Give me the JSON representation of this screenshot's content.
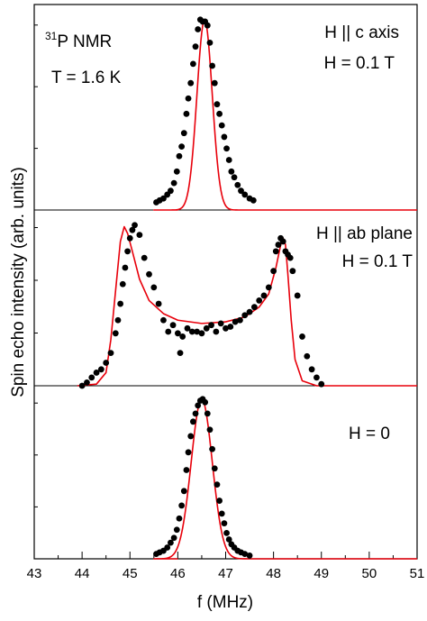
{
  "chart_data": {
    "type": "scatter",
    "xlabel": "f (MHz)",
    "ylabel": "Spin echo intensity (arb. units)",
    "xlim": [
      43,
      51
    ],
    "x_ticks": [
      "43",
      "44",
      "45",
      "46",
      "47",
      "48",
      "49",
      "50",
      "51"
    ],
    "grid": false,
    "colors": {
      "data": "#000000",
      "fit": "#e8000b"
    },
    "panels": [
      {
        "id": "c-axis",
        "ylim": [
          0,
          1.05
        ],
        "annotations": {
          "nucleus_sup": "31",
          "nucleus": "P NMR",
          "temperature": "T = 1.6 K",
          "orientation": "H || c axis",
          "field": "H = 0.1 T"
        },
        "series": [
          {
            "kind": "points",
            "x": [
              45.55,
              45.62,
              45.7,
              45.78,
              45.85,
              45.92,
              45.98,
              46.03,
              46.08,
              46.13,
              46.18,
              46.22,
              46.27,
              46.32,
              46.37,
              46.42,
              46.47,
              46.52,
              46.57,
              46.62,
              46.67,
              46.72,
              46.77,
              46.82,
              46.87,
              46.92,
              46.97,
              47.02,
              47.07,
              47.12,
              47.18,
              47.25,
              47.32,
              47.4,
              47.5,
              47.58
            ],
            "y": [
              0.04,
              0.05,
              0.06,
              0.08,
              0.1,
              0.14,
              0.2,
              0.28,
              0.33,
              0.4,
              0.5,
              0.58,
              0.66,
              0.76,
              0.85,
              0.94,
              0.99,
              0.98,
              0.98,
              0.96,
              0.87,
              0.75,
              0.66,
              0.55,
              0.5,
              0.44,
              0.38,
              0.32,
              0.26,
              0.2,
              0.17,
              0.13,
              0.1,
              0.08,
              0.06,
              0.05
            ]
          },
          {
            "kind": "fit",
            "shape": "gaussian",
            "center": 46.56,
            "sigma": 0.16,
            "amplitude": 0.99,
            "xrange": [
              45.5,
              47.65
            ]
          }
        ]
      },
      {
        "id": "ab-plane",
        "ylim": [
          0,
          1.05
        ],
        "annotations": {
          "orientation": "H || ab plane",
          "field": "H = 0.1 T"
        },
        "series": [
          {
            "kind": "points",
            "x": [
              44.0,
              44.1,
              44.2,
              44.3,
              44.4,
              44.5,
              44.6,
              44.7,
              44.75,
              44.8,
              44.85,
              44.9,
              44.95,
              45.0,
              45.05,
              45.1,
              45.2,
              45.3,
              45.4,
              45.5,
              45.6,
              45.7,
              45.8,
              45.9,
              46.0,
              46.1,
              46.2,
              46.3,
              46.4,
              46.5,
              46.6,
              46.7,
              46.8,
              46.9,
              47.0,
              47.1,
              47.2,
              47.3,
              47.4,
              47.5,
              47.6,
              47.7,
              47.8,
              47.9,
              48.0,
              48.05,
              48.1,
              48.15,
              48.2,
              48.25,
              48.3,
              48.35,
              48.4,
              48.5,
              48.6,
              48.7,
              48.8,
              48.9,
              49.0,
              46.05
            ],
            "y": [
              0.0,
              0.02,
              0.05,
              0.08,
              0.1,
              0.14,
              0.2,
              0.32,
              0.4,
              0.5,
              0.62,
              0.72,
              0.82,
              0.9,
              0.95,
              0.98,
              0.92,
              0.78,
              0.68,
              0.6,
              0.5,
              0.4,
              0.33,
              0.37,
              0.32,
              0.3,
              0.35,
              0.33,
              0.33,
              0.32,
              0.35,
              0.37,
              0.33,
              0.38,
              0.35,
              0.36,
              0.39,
              0.4,
              0.43,
              0.45,
              0.48,
              0.52,
              0.55,
              0.6,
              0.7,
              0.82,
              0.86,
              0.9,
              0.88,
              0.82,
              0.8,
              0.78,
              0.7,
              0.55,
              0.3,
              0.18,
              0.1,
              0.05,
              0.01,
              0.2
            ]
          },
          {
            "kind": "fit",
            "shape": "powder",
            "points": [
              [
                43.9,
                0
              ],
              [
                44.3,
                0.01
              ],
              [
                44.5,
                0.08
              ],
              [
                44.6,
                0.28
              ],
              [
                44.7,
                0.58
              ],
              [
                44.8,
                0.88
              ],
              [
                44.88,
                0.97
              ],
              [
                44.95,
                0.93
              ],
              [
                45.05,
                0.82
              ],
              [
                45.2,
                0.65
              ],
              [
                45.4,
                0.52
              ],
              [
                45.7,
                0.44
              ],
              [
                46.0,
                0.4
              ],
              [
                46.5,
                0.38
              ],
              [
                47.0,
                0.39
              ],
              [
                47.4,
                0.42
              ],
              [
                47.7,
                0.48
              ],
              [
                47.9,
                0.56
              ],
              [
                48.05,
                0.72
              ],
              [
                48.15,
                0.86
              ],
              [
                48.2,
                0.9
              ],
              [
                48.25,
                0.86
              ],
              [
                48.3,
                0.68
              ],
              [
                48.37,
                0.4
              ],
              [
                48.45,
                0.16
              ],
              [
                48.6,
                0.03
              ],
              [
                48.9,
                0
              ],
              [
                51,
                0
              ]
            ]
          }
        ]
      },
      {
        "id": "zero-field",
        "ylim": [
          0,
          1.05
        ],
        "annotations": {
          "field": "H = 0"
        },
        "series": [
          {
            "kind": "points",
            "x": [
              45.55,
              45.62,
              45.7,
              45.78,
              45.85,
              45.92,
              45.98,
              46.03,
              46.08,
              46.13,
              46.18,
              46.22,
              46.27,
              46.32,
              46.37,
              46.42,
              46.47,
              46.52,
              46.57,
              46.62,
              46.67,
              46.72,
              46.77,
              46.82,
              46.87,
              46.92,
              46.97,
              47.02,
              47.07,
              47.12,
              47.18,
              47.25,
              47.32,
              47.4,
              47.5
            ],
            "y": [
              0.03,
              0.04,
              0.05,
              0.07,
              0.1,
              0.13,
              0.18,
              0.25,
              0.33,
              0.42,
              0.55,
              0.66,
              0.76,
              0.85,
              0.9,
              0.95,
              0.98,
              0.99,
              0.97,
              0.9,
              0.8,
              0.68,
              0.56,
              0.46,
              0.36,
              0.28,
              0.22,
              0.16,
              0.12,
              0.09,
              0.07,
              0.05,
              0.04,
              0.03,
              0.02
            ]
          },
          {
            "kind": "fit",
            "shape": "gaussian",
            "center": 46.5,
            "sigma": 0.22,
            "amplitude": 0.99,
            "xrange": [
              45.5,
              47.65
            ]
          }
        ]
      }
    ]
  }
}
